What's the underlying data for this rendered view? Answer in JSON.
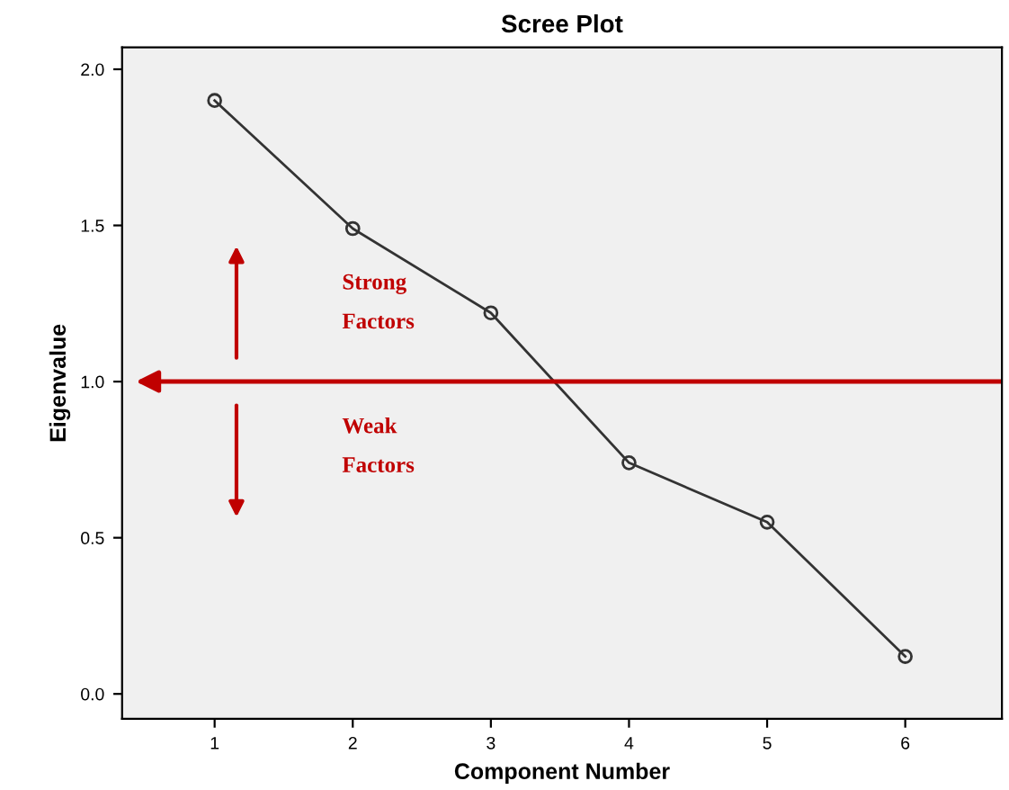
{
  "chart_data": {
    "type": "line",
    "title": "Scree Plot",
    "xlabel": "Component Number",
    "ylabel": "Eigenvalue",
    "x": [
      1,
      2,
      3,
      4,
      5,
      6
    ],
    "series": [
      {
        "color": "#333333",
        "values": [
          1.9,
          1.49,
          1.22,
          0.74,
          0.55,
          0.12
        ]
      }
    ],
    "xlim": [
      0.33,
      6.7
    ],
    "xticks": [
      1,
      2,
      3,
      4,
      5,
      6
    ],
    "ylim": [
      -0.08,
      2.07
    ],
    "yticks": [
      {
        "value": 0,
        "label": "0.0"
      },
      {
        "value": 0.5,
        "label": "0.5"
      },
      {
        "value": 1,
        "label": "1.0"
      },
      {
        "value": 1.5,
        "label": "1.5"
      },
      {
        "value": 2,
        "label": "2.0"
      }
    ],
    "ref_lines": [
      {
        "axis": "y",
        "value": 1.0,
        "color": "#c00000"
      }
    ],
    "annotations": [
      "Strong\nFactors",
      "Weak\nFactors"
    ],
    "marker": "circle",
    "line_style": "solid",
    "grid": false
  }
}
